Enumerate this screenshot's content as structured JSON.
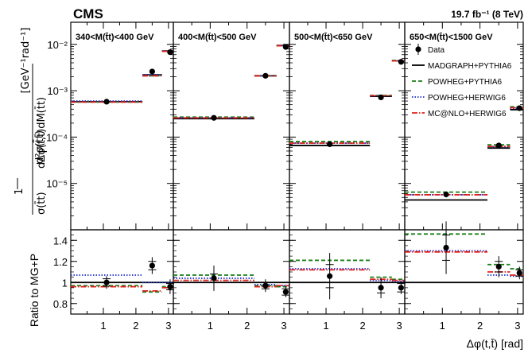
{
  "chart_data": {
    "type": "scatter",
    "experiment": "CMS",
    "luminosity": "19.7 fb⁻¹ (8 TeV)",
    "xlabel": "Δφ(t,t̄) [rad]",
    "ylabel_top": {
      "prefix": "1",
      "fraction_num": "d²σ(t̄t)",
      "prefactor_den": "σ(t̄t)",
      "fraction_den": "dΔφ(t,t̄)dM(t̄t)",
      "units": "[GeV⁻¹rad⁻¹]"
    },
    "ylabel_bottom": "Ratio to MG+P",
    "xlim": [
      0,
      3.15
    ],
    "ylim_top": [
      1e-06,
      0.03
    ],
    "ylim_top_log": true,
    "ylim_bottom": [
      0.7,
      1.5
    ],
    "x_ticks": [
      "1",
      "2",
      "3"
    ],
    "y_ticks_top": [
      "10⁻²",
      "10⁻³",
      "10⁻⁴",
      "10⁻⁵"
    ],
    "y_ticks_bottom": [
      "1.4",
      "1.2",
      "1",
      "0.8"
    ],
    "bin_edges": [
      0,
      2.2,
      2.8,
      3.15
    ],
    "legend": [
      {
        "name": "Data",
        "style": "marker"
      },
      {
        "name": "MADGRAPH+PYTHIA6",
        "style": "solid",
        "color": "#000000"
      },
      {
        "name": "POWHEG+PYTHIA6",
        "style": "dashed",
        "color": "#1a7f1a"
      },
      {
        "name": "POWHEG+HERWIG6",
        "style": "dotted",
        "color": "#1f2fd0"
      },
      {
        "name": "MC@NLO+HERWIG6",
        "style": "dashdot",
        "color": "#e0201a"
      }
    ],
    "panels": [
      {
        "mass_range": "340<M(t̄t)<400 GeV",
        "data_x": [
          1.1,
          2.5,
          3.05
        ],
        "data_y": [
          0.00058,
          0.0026,
          0.0068
        ],
        "data_err_lo": [
          3e-05,
          0.00025,
          0.0006
        ],
        "data_err_hi": [
          3e-05,
          0.0003,
          0.0007
        ],
        "madgraph": [
          0.00058,
          0.0022,
          0.0072
        ],
        "powheg_pythia": [
          0.00057,
          0.0021,
          0.0071
        ],
        "powheg_herwig": [
          0.0006,
          0.0022,
          0.0072
        ],
        "mcnlo_herwig": [
          0.00057,
          0.0021,
          0.0071
        ],
        "ratio_data": [
          1.0,
          1.16,
          0.96
        ],
        "ratio_err_stat": [
          0.035,
          0.04,
          0.03
        ],
        "ratio_err_tot": [
          0.06,
          0.08,
          0.07
        ],
        "ratio_powheg_pythia": [
          0.97,
          0.91,
          0.96
        ],
        "ratio_powheg_herwig": [
          1.07,
          1.0,
          1.0
        ],
        "ratio_mcnlo_herwig": [
          0.96,
          0.92,
          0.95
        ]
      },
      {
        "mass_range": "400<M(t̄t)<500 GeV",
        "data_x": [
          1.1,
          2.5,
          3.05
        ],
        "data_y": [
          0.00026,
          0.0021,
          0.0088
        ],
        "data_err_lo": [
          1.5e-05,
          0.00015,
          0.0006
        ],
        "data_err_hi": [
          1.5e-05,
          0.00015,
          0.0006
        ],
        "madgraph": [
          0.00025,
          0.0021,
          0.0095
        ],
        "powheg_pythia": [
          0.00027,
          0.0021,
          0.0093
        ],
        "powheg_herwig": [
          0.00026,
          0.0021,
          0.0094
        ],
        "mcnlo_herwig": [
          0.00026,
          0.0021,
          0.0093
        ],
        "ratio_data": [
          1.04,
          0.97,
          0.91
        ],
        "ratio_err_stat": [
          0.04,
          0.03,
          0.03
        ],
        "ratio_err_tot": [
          0.12,
          0.06,
          0.05
        ],
        "ratio_powheg_pythia": [
          1.07,
          0.97,
          0.96
        ],
        "ratio_powheg_herwig": [
          1.04,
          0.98,
          0.97
        ],
        "ratio_mcnlo_herwig": [
          1.02,
          0.96,
          0.97
        ]
      },
      {
        "mass_range": "500<M(t̄t)<650 GeV",
        "data_x": [
          1.1,
          2.5,
          3.05
        ],
        "data_y": [
          7e-05,
          0.00072,
          0.0042
        ],
        "data_err_lo": [
          8e-06,
          5e-05,
          0.0003
        ],
        "data_err_hi": [
          8e-06,
          5e-05,
          0.0003
        ],
        "madgraph": [
          6.6e-05,
          0.00076,
          0.0044
        ],
        "powheg_pythia": [
          8e-05,
          0.00079,
          0.0045
        ],
        "powheg_herwig": [
          7.4e-05,
          0.00078,
          0.0044
        ],
        "mcnlo_herwig": [
          7.4e-05,
          0.00078,
          0.0044
        ],
        "ratio_data": [
          1.06,
          0.95,
          0.95
        ],
        "ratio_err_stat": [
          0.11,
          0.05,
          0.04
        ],
        "ratio_err_tot": [
          0.22,
          0.1,
          0.06
        ],
        "ratio_powheg_pythia": [
          1.21,
          1.05,
          1.03
        ],
        "ratio_powheg_herwig": [
          1.13,
          1.02,
          1.01
        ],
        "ratio_mcnlo_herwig": [
          1.12,
          1.03,
          1.02
        ]
      },
      {
        "mass_range": "650<M(t̄t)<1500 GeV",
        "data_x": [
          1.1,
          2.5,
          3.05
        ],
        "data_y": [
          5.8e-06,
          6.6e-05,
          0.00042
        ],
        "data_err_lo": [
          8e-07,
          6e-06,
          3e-05
        ],
        "data_err_hi": [
          8e-07,
          6e-06,
          3e-05
        ],
        "madgraph": [
          4.4e-06,
          5.8e-05,
          0.00039
        ],
        "powheg_pythia": [
          6.5e-06,
          6.8e-05,
          0.00045
        ],
        "powheg_herwig": [
          5.7e-06,
          6.2e-05,
          0.00042
        ],
        "mcnlo_herwig": [
          5.7e-06,
          6.3e-05,
          0.00043
        ],
        "ratio_data": [
          1.33,
          1.15,
          1.09
        ],
        "ratio_err_stat": [
          0.12,
          0.05,
          0.03
        ],
        "ratio_err_tot": [
          0.25,
          0.1,
          0.06
        ],
        "ratio_powheg_pythia": [
          1.46,
          1.17,
          1.13
        ],
        "ratio_powheg_herwig": [
          1.3,
          1.07,
          1.06
        ],
        "ratio_mcnlo_herwig": [
          1.29,
          1.1,
          1.07
        ]
      }
    ]
  }
}
